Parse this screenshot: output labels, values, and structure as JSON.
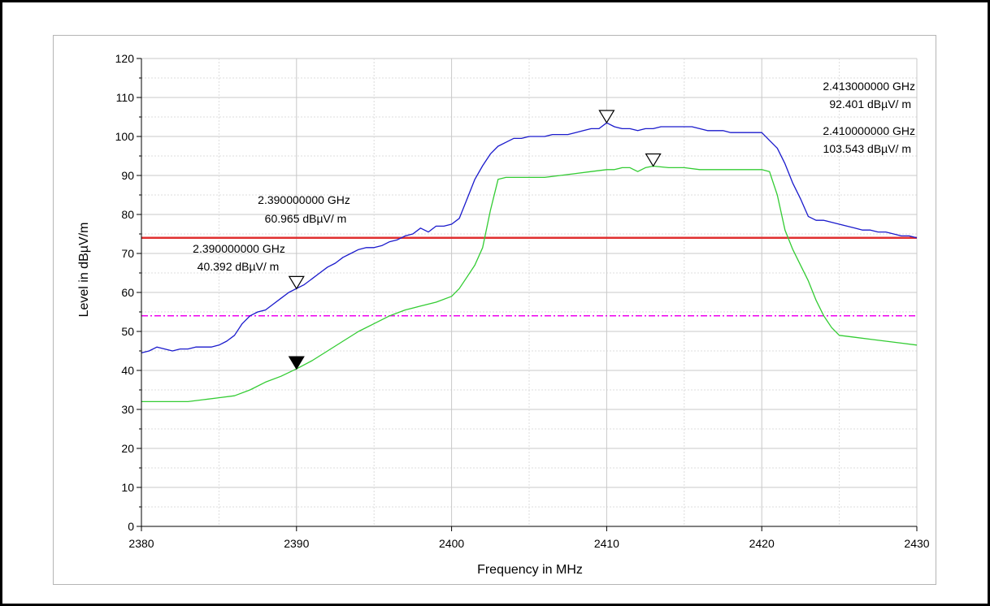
{
  "chart_data": {
    "type": "line",
    "xlabel": "Frequency in MHz",
    "ylabel": "Level in dBµV/m",
    "xlim": [
      2380,
      2430
    ],
    "ylim": [
      0,
      120
    ],
    "x_major_ticks": [
      2380,
      2390,
      2400,
      2410,
      2420,
      2430
    ],
    "x_tick_labels": [
      "2380",
      "2390",
      "2400",
      "2410",
      "2420",
      "2430"
    ],
    "y_major_ticks": [
      0,
      10,
      20,
      30,
      40,
      50,
      60,
      70,
      80,
      90,
      100,
      110,
      120
    ],
    "y_tick_labels": [
      "0",
      "10",
      "20",
      "30",
      "40",
      "50",
      "60",
      "70",
      "80",
      "90",
      "100",
      "110",
      "120"
    ],
    "grid": true,
    "series": [
      {
        "color": "#1a1acc",
        "x": [
          2380,
          2380.5,
          2381,
          2381.5,
          2382,
          2382.5,
          2383,
          2383.5,
          2384,
          2384.5,
          2385,
          2385.5,
          2386,
          2386.5,
          2387,
          2387.5,
          2388,
          2388.5,
          2389,
          2389.5,
          2390,
          2390.5,
          2391,
          2391.5,
          2392,
          2392.5,
          2393,
          2393.5,
          2394,
          2394.5,
          2395,
          2395.5,
          2396,
          2396.5,
          2397,
          2397.5,
          2398,
          2398.5,
          2399,
          2399.5,
          2400,
          2400.5,
          2401,
          2401.5,
          2402,
          2402.5,
          2403,
          2403.5,
          2404,
          2404.5,
          2405,
          2405.5,
          2406,
          2406.5,
          2407,
          2407.5,
          2408,
          2408.5,
          2409,
          2409.5,
          2410,
          2410.5,
          2411,
          2411.5,
          2412,
          2412.5,
          2413,
          2413.5,
          2414,
          2414.5,
          2415,
          2415.5,
          2416,
          2416.5,
          2417,
          2417.5,
          2418,
          2418.5,
          2419,
          2419.5,
          2420,
          2420.5,
          2421,
          2421.5,
          2422,
          2422.5,
          2423,
          2423.5,
          2424,
          2424.5,
          2425,
          2425.5,
          2426,
          2426.5,
          2427,
          2427.5,
          2428,
          2428.5,
          2429,
          2429.5,
          2430
        ],
        "y": [
          44.5,
          45,
          46,
          45.5,
          45,
          45.5,
          45.5,
          46,
          46,
          46,
          46.5,
          47.5,
          49,
          52,
          54,
          55,
          55.5,
          57,
          58.5,
          60,
          61,
          62,
          63.5,
          65,
          66.5,
          67.5,
          69,
          70,
          71,
          71.5,
          71.5,
          72,
          73,
          73.5,
          74.5,
          75,
          76.5,
          75.5,
          77,
          77,
          77.5,
          79,
          84,
          89,
          92.5,
          95.5,
          97.5,
          98.5,
          99.5,
          99.5,
          100,
          100,
          100,
          100.5,
          100.5,
          100.5,
          101,
          101.5,
          102,
          102,
          103.5,
          102.5,
          102,
          102,
          101.5,
          102,
          102,
          102.5,
          102.5,
          102.5,
          102.5,
          102.5,
          102,
          101.5,
          101.5,
          101.5,
          101,
          101,
          101,
          101,
          101,
          99,
          97,
          93,
          88,
          84,
          79.5,
          78.5,
          78.5,
          78,
          77.5,
          77,
          76.5,
          76,
          76,
          75.5,
          75.5,
          75,
          74.5,
          74.5,
          74
        ]
      },
      {
        "color": "#33cc33",
        "x": [
          2380,
          2381,
          2382,
          2383,
          2384,
          2385,
          2386,
          2387,
          2388,
          2389,
          2390,
          2391,
          2392,
          2393,
          2394,
          2395,
          2396,
          2397,
          2398,
          2399,
          2400,
          2400.5,
          2401,
          2401.5,
          2402,
          2402.5,
          2403,
          2403.5,
          2404,
          2405,
          2406,
          2407,
          2408,
          2409,
          2410,
          2410.5,
          2411,
          2411.5,
          2412,
          2412.5,
          2413,
          2414,
          2415,
          2416,
          2417,
          2418,
          2419,
          2419.5,
          2420,
          2420.5,
          2421,
          2421.5,
          2422,
          2422.5,
          2423,
          2423.5,
          2424,
          2424.5,
          2425,
          2426,
          2427,
          2428,
          2429,
          2430
        ],
        "y": [
          32,
          32,
          32,
          32,
          32.5,
          33,
          33.5,
          35,
          37,
          38.5,
          40.4,
          42.5,
          45,
          47.5,
          50,
          52,
          54,
          55.5,
          56.5,
          57.5,
          59,
          61,
          64,
          67,
          71.5,
          81,
          89,
          89.5,
          89.5,
          89.5,
          89.5,
          90,
          90.5,
          91,
          91.5,
          91.5,
          92,
          92,
          91,
          92,
          92.4,
          92,
          92,
          91.5,
          91.5,
          91.5,
          91.5,
          91.5,
          91.5,
          91,
          85,
          76,
          71,
          67,
          63,
          58,
          54,
          51,
          49,
          48.5,
          48,
          47.5,
          47,
          46.5
        ]
      }
    ],
    "limit_lines": [
      {
        "value": 74,
        "color": "#e03030",
        "style": "solid"
      },
      {
        "value": 54,
        "color": "#ee00ee",
        "style": "dash-dot"
      }
    ],
    "markers": [
      {
        "x": 2390,
        "y": 60.965,
        "filled": false
      },
      {
        "x": 2390,
        "y": 40.392,
        "filled": true
      },
      {
        "x": 2410,
        "y": 103.543,
        "filled": false
      },
      {
        "x": 2413,
        "y": 92.401,
        "filled": false
      }
    ],
    "annotations": [
      {
        "freq": "2.390000000 GHz",
        "level": "60.965 dBµV/ m"
      },
      {
        "freq": "2.390000000 GHz",
        "level": "40.392 dBµV/ m"
      },
      {
        "freq": "2.413000000 GHz",
        "level": "92.401 dBµV/ m"
      },
      {
        "freq": "2.410000000 GHz",
        "level": "103.543 dBµV/ m"
      }
    ]
  }
}
